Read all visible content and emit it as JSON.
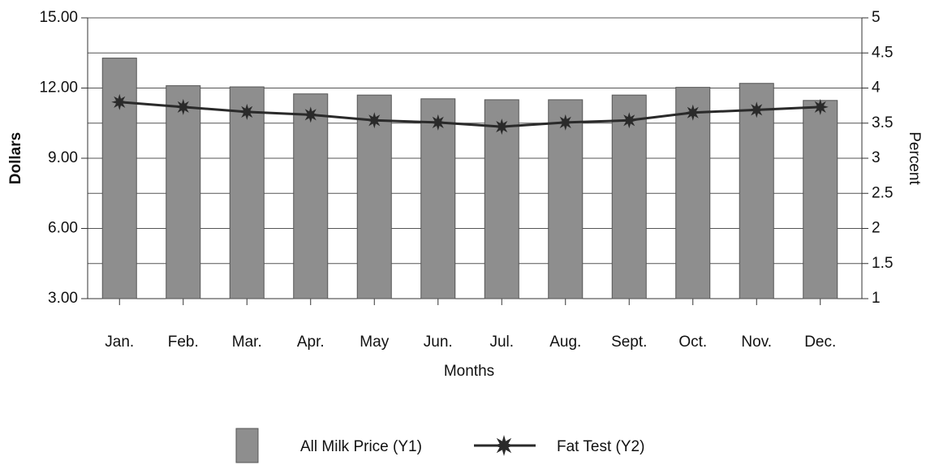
{
  "chart_data": {
    "type": "bar_line",
    "xlabel": "Months",
    "ylabel": "Dollars",
    "y2label": "Percent",
    "categories": [
      "Jan.",
      "Feb.",
      "Mar.",
      "Apr.",
      "May",
      "Jun.",
      "Jul.",
      "Aug.",
      "Sept.",
      "Oct.",
      "Nov.",
      "Dec."
    ],
    "series": [
      {
        "name": "All Milk Price (Y1)",
        "type": "bar",
        "axis": "y",
        "color": "#8e8e8e",
        "values": [
          13.28,
          12.1,
          12.05,
          11.75,
          11.7,
          11.54,
          11.5,
          11.5,
          11.7,
          12.03,
          12.2,
          11.47
        ]
      },
      {
        "name": "Fat Test (Y2)",
        "type": "line",
        "axis": "y2",
        "color": "#2a2a2a",
        "values": [
          3.8,
          3.73,
          3.66,
          3.62,
          3.54,
          3.51,
          3.45,
          3.51,
          3.54,
          3.65,
          3.69,
          3.73
        ]
      }
    ],
    "ylim": [
      3,
      15
    ],
    "yticks": [
      {
        "value": 3,
        "label": "3.00"
      },
      {
        "value": 6,
        "label": "6.00"
      },
      {
        "value": 9,
        "label": "9.00"
      },
      {
        "value": 12,
        "label": "12.00"
      },
      {
        "value": 15,
        "label": "15.00"
      }
    ],
    "y2lim": [
      1,
      5
    ],
    "y2ticks": [
      1,
      1.5,
      2,
      2.5,
      3,
      3.5,
      4,
      4.5,
      5
    ],
    "grid": true
  }
}
